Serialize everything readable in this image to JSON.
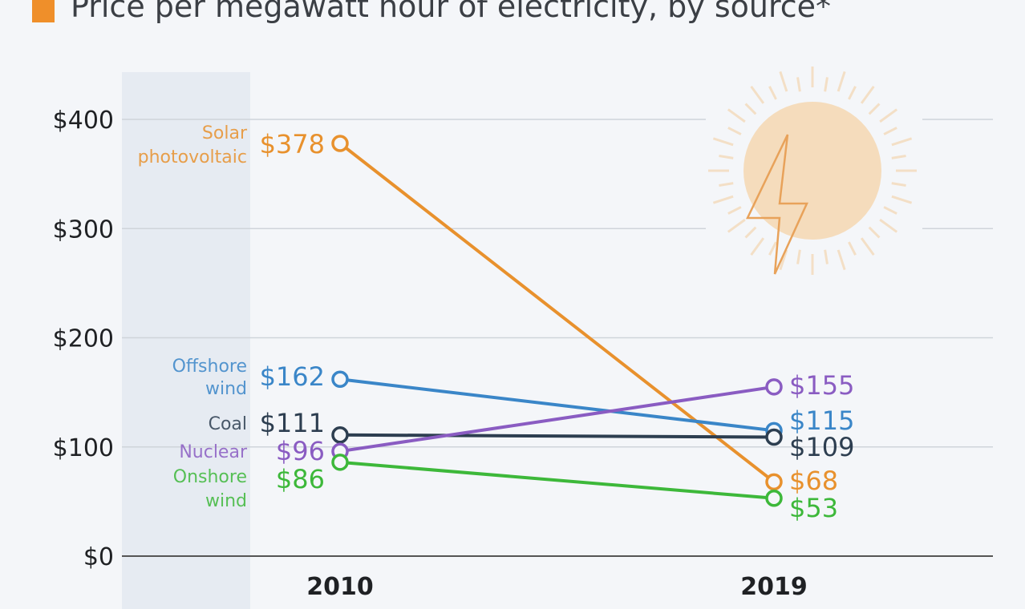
{
  "title": "Price per megawatt hour of electricity, by source*",
  "colors": {
    "title_marker": "#ef8f2a",
    "background": "#f4f6f9",
    "highlight_column": "#e6ebf2"
  },
  "chart_data": {
    "type": "line",
    "title": "Price per megawatt hour of electricity, by source*",
    "x": [
      "2010",
      "2019"
    ],
    "ylim": [
      0,
      400
    ],
    "yticks": [
      0,
      100,
      200,
      300,
      400
    ],
    "ytick_labels": [
      "$0",
      "$100",
      "$200",
      "$300",
      "$400"
    ],
    "grid": true,
    "legend": "none (direct labels at left)",
    "series": [
      {
        "name": "Solar photovoltaic",
        "name_lines": [
          "Solar",
          "photovoltaic"
        ],
        "values": [
          378,
          68
        ],
        "labels": [
          "$378",
          "$68"
        ],
        "color": "#e8912d"
      },
      {
        "name": "Offshore wind",
        "name_lines": [
          "Offshore",
          "wind"
        ],
        "values": [
          162,
          115
        ],
        "labels": [
          "$162",
          "$115"
        ],
        "color": "#3a86c8"
      },
      {
        "name": "Coal",
        "name_lines": [
          "Coal"
        ],
        "values": [
          111,
          109
        ],
        "labels": [
          "$111",
          "$109"
        ],
        "color": "#2d3e50"
      },
      {
        "name": "Nuclear",
        "name_lines": [
          "Nuclear"
        ],
        "values": [
          96,
          155
        ],
        "labels": [
          "$96",
          "$155"
        ],
        "color": "#8a5cc2"
      },
      {
        "name": "Onshore wind",
        "name_lines": [
          "Onshore",
          "wind"
        ],
        "values": [
          86,
          53
        ],
        "labels": [
          "$86",
          "$53"
        ],
        "color": "#3db83a"
      }
    ]
  }
}
